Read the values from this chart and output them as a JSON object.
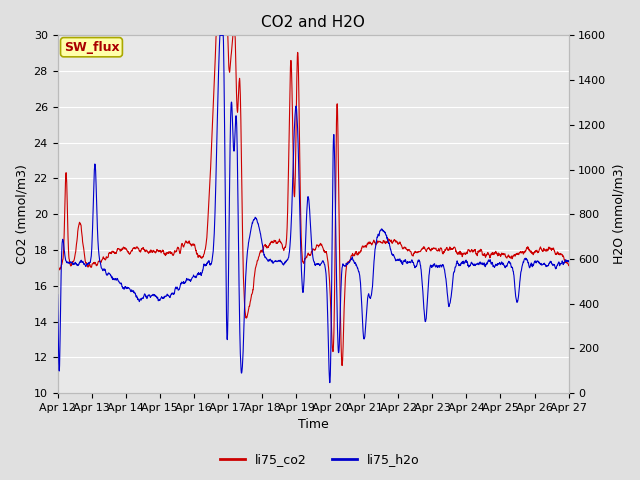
{
  "title": "CO2 and H2O",
  "xlabel": "Time",
  "ylabel_left": "CO2 (mmol/m3)",
  "ylabel_right": "H2O (mmol/m3)",
  "xlim": [
    0,
    15
  ],
  "ylim_left": [
    10,
    30
  ],
  "ylim_right": [
    0,
    1600
  ],
  "yticks_left": [
    10,
    12,
    14,
    16,
    18,
    20,
    22,
    24,
    26,
    28,
    30
  ],
  "yticks_right": [
    0,
    200,
    400,
    600,
    800,
    1000,
    1200,
    1400,
    1600
  ],
  "xtick_labels": [
    "Apr 12",
    "Apr 13",
    "Apr 14",
    "Apr 15",
    "Apr 16",
    "Apr 17",
    "Apr 18",
    "Apr 19",
    "Apr 20",
    "Apr 21",
    "Apr 22",
    "Apr 23",
    "Apr 24",
    "Apr 25",
    "Apr 26",
    "Apr 27"
  ],
  "background_color": "#e0e0e0",
  "plot_bg_color": "#e8e8e8",
  "grid_color": "#ffffff",
  "co2_color": "#cc0000",
  "h2o_color": "#0000cc",
  "legend_label_co2": "li75_co2",
  "legend_label_h2o": "li75_h2o",
  "annotation_text": "SW_flux",
  "annotation_bg": "#ffffaa",
  "annotation_border": "#aaa800",
  "annotation_color": "#aa0000",
  "title_fontsize": 11,
  "axis_fontsize": 9,
  "tick_fontsize": 8
}
